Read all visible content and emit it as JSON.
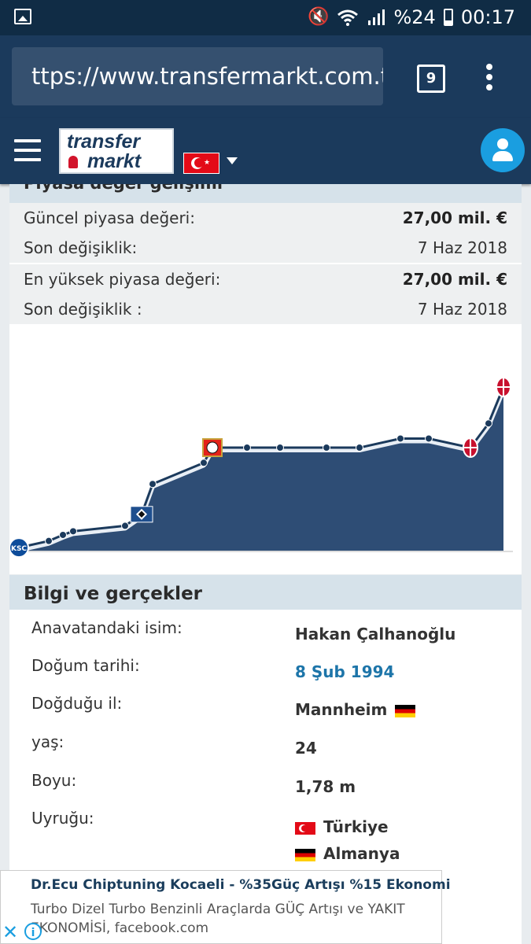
{
  "status_bar": {
    "battery_text": "%24",
    "time": "00:17",
    "icons": [
      "gallery-icon",
      "mute-icon",
      "wifi-icon",
      "signal-icon",
      "battery-icon"
    ]
  },
  "browser": {
    "url": "ttps://www.transfermarkt.com.tr",
    "tab_count": "9"
  },
  "site": {
    "logo_line1": "transfer",
    "logo_line2": "markt",
    "brand_color": "#1b3a5c",
    "accent_color": "#1a9ee0"
  },
  "market_value": {
    "title": "Piyasa değer gelişimi",
    "rows": [
      {
        "label": "Güncel piyasa değeri:",
        "value": "27,00 mil. €"
      },
      {
        "label": "Son değişiklik:",
        "value": "7 Haz 2018"
      },
      {
        "label": "En yüksek piyasa değeri:",
        "value": "27,00 mil. €"
      },
      {
        "label": "Son değişiklik :",
        "value": "7 Haz 2018"
      }
    ]
  },
  "chart_data": {
    "type": "area",
    "title": "",
    "xlabel": "",
    "ylabel": "",
    "grid": false,
    "fill_color": "#2e4d75",
    "line_color": "#1b3a5c",
    "ylim": [
      0,
      27
    ],
    "series": [
      {
        "values": [
          0.5,
          1.6,
          2.6,
          3.2,
          4.1,
          6.0,
          11.0,
          14.5,
          17.0,
          17.0,
          17.0,
          17.0,
          17.0,
          18.5,
          18.5,
          17.0,
          21.0,
          27.0
        ],
        "club_markers": [
          {
            "index": 0,
            "club": "Karlsruher SC",
            "icon": "ksc-crest-icon"
          },
          {
            "index": 5,
            "club": "Hamburger SV",
            "icon": "hsv-crest-icon"
          },
          {
            "index": 8,
            "club": "Bayer Leverkusen",
            "icon": "leverkusen-crest-icon"
          },
          {
            "index": 15,
            "club": "AC Milan",
            "icon": "milan-crest-icon"
          },
          {
            "index": 17,
            "club": "AC Milan",
            "icon": "milan-crest-icon"
          }
        ]
      }
    ]
  },
  "info": {
    "title": "Bilgi ve gerçekler",
    "rows": [
      {
        "label": "Anavatandaki isim:",
        "value": "Hakan Çalhanoğlu"
      },
      {
        "label": "Doğum tarihi:",
        "value": "8 Şub 1994"
      },
      {
        "label": "Doğduğu il:",
        "value": "Mannheim"
      },
      {
        "label": "yaş:",
        "value": "24"
      },
      {
        "label": "Boyu:",
        "value": "1,78 m"
      },
      {
        "label": "Uyruğu:",
        "value": ""
      }
    ],
    "nationalities": [
      "Türkiye",
      "Almanya"
    ]
  },
  "ad": {
    "title": "Dr.Ecu Chiptuning Kocaeli - %35Güç Artışı %15 Ekonomi",
    "text": "Turbo Dizel Turbo Benzinli Araçlarda GÜÇ Artışı ve YAKIT EKONOMİSİ, facebook.com",
    "info_glyph": "i"
  }
}
